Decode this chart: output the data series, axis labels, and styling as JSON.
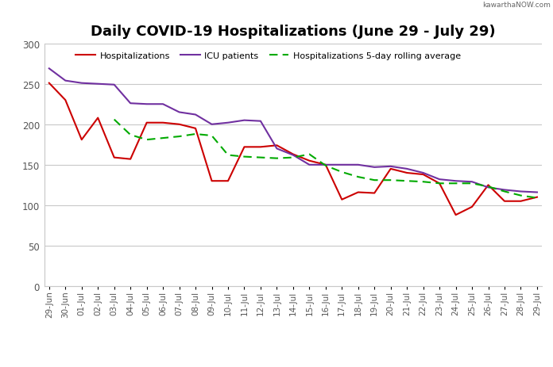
{
  "title": "Daily COVID-19 Hospitalizations (June 29 - July 29)",
  "watermark": "kawarthaNOW.com",
  "dates": [
    "29-Jun",
    "30-Jun",
    "01-Jul",
    "02-Jul",
    "03-Jul",
    "04-Jul",
    "05-Jul",
    "06-Jul",
    "07-Jul",
    "08-Jul",
    "09-Jul",
    "10-Jul",
    "11-Jul",
    "12-Jul",
    "13-Jul",
    "14-Jul",
    "15-Jul",
    "16-Jul",
    "17-Jul",
    "18-Jul",
    "19-Jul",
    "20-Jul",
    "21-Jul",
    "22-Jul",
    "23-Jul",
    "24-Jul",
    "25-Jul",
    "26-Jul",
    "27-Jul",
    "28-Jul",
    "29-Jul"
  ],
  "hospitalizations": [
    251,
    230,
    181,
    208,
    159,
    157,
    202,
    202,
    200,
    195,
    130,
    130,
    172,
    172,
    174,
    163,
    155,
    150,
    107,
    116,
    115,
    145,
    140,
    138,
    127,
    88,
    98,
    125,
    105,
    105,
    110
  ],
  "icu": [
    269,
    254,
    251,
    250,
    249,
    226,
    225,
    225,
    215,
    212,
    200,
    202,
    205,
    204,
    170,
    162,
    150,
    150,
    150,
    150,
    147,
    148,
    145,
    140,
    132,
    130,
    129,
    122,
    119,
    117,
    116
  ],
  "rolling_avg": [
    null,
    null,
    null,
    null,
    206,
    187,
    181,
    183,
    185,
    188,
    186,
    162,
    160,
    159,
    158,
    159,
    163,
    149,
    141,
    135,
    131,
    131,
    130,
    129,
    127,
    127,
    127,
    123,
    117,
    112,
    109
  ],
  "hosp_color": "#CC0000",
  "icu_color": "#7030A0",
  "rolling_color": "#00AA00",
  "bg_color": "#FFFFFF",
  "grid_color": "#C8C8C8",
  "ylim": [
    0,
    300
  ],
  "yticks": [
    0,
    50,
    100,
    150,
    200,
    250,
    300
  ],
  "legend_hosp": "Hospitalizations",
  "legend_icu": "ICU patients",
  "legend_rolling": "Hospitalizations 5-day rolling average",
  "title_fontsize": 13,
  "tick_fontsize": 7.5,
  "ytick_fontsize": 8.5
}
